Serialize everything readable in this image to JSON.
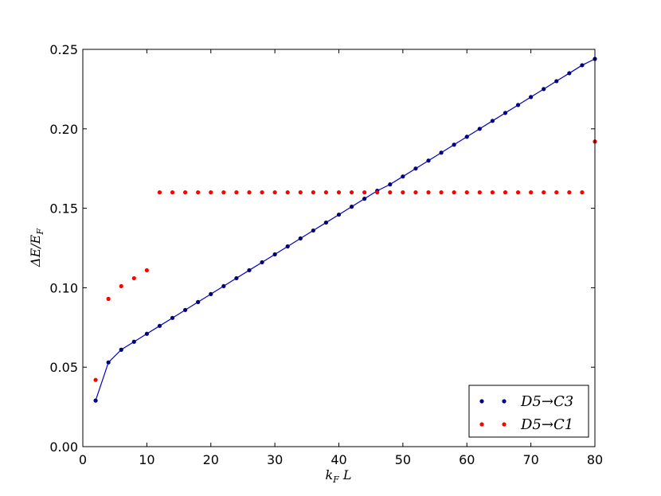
{
  "chart_data": {
    "type": "scatter",
    "xlabel": "k_F L",
    "ylabel": "ΔE/E_F",
    "xlim": [
      0,
      80
    ],
    "ylim": [
      0,
      0.25
    ],
    "xticks": [
      "0",
      "10",
      "20",
      "30",
      "40",
      "50",
      "60",
      "70",
      "80"
    ],
    "yticks": [
      "0.00",
      "0.05",
      "0.10",
      "0.15",
      "0.20",
      "0.25"
    ],
    "legend_position": "lower-right",
    "grid": false,
    "series": [
      {
        "name": "D5→C3",
        "color": "#000080",
        "line_color": "#0000cc",
        "line": true,
        "x": [
          2,
          4,
          6,
          8,
          10,
          12,
          14,
          16,
          18,
          20,
          22,
          24,
          26,
          28,
          30,
          32,
          34,
          36,
          38,
          40,
          42,
          44,
          46,
          48,
          50,
          52,
          54,
          56,
          58,
          60,
          62,
          64,
          66,
          68,
          70,
          72,
          74,
          76,
          78,
          80
        ],
        "y": [
          0.029,
          0.053,
          0.061,
          0.066,
          0.071,
          0.076,
          0.081,
          0.086,
          0.091,
          0.096,
          0.101,
          0.106,
          0.111,
          0.116,
          0.121,
          0.126,
          0.131,
          0.136,
          0.141,
          0.146,
          0.151,
          0.156,
          0.161,
          0.165,
          0.17,
          0.175,
          0.18,
          0.185,
          0.19,
          0.195,
          0.2,
          0.205,
          0.21,
          0.215,
          0.22,
          0.225,
          0.23,
          0.235,
          0.24,
          0.244
        ]
      },
      {
        "name": "D5→C1",
        "color": "#ff0000",
        "line": false,
        "x": [
          2,
          4,
          6,
          8,
          10,
          12,
          14,
          16,
          18,
          20,
          22,
          24,
          26,
          28,
          30,
          32,
          34,
          36,
          38,
          40,
          42,
          44,
          46,
          48,
          50,
          52,
          54,
          56,
          58,
          60,
          62,
          64,
          66,
          68,
          70,
          72,
          74,
          76,
          78,
          80
        ],
        "y": [
          0.042,
          0.093,
          0.101,
          0.106,
          0.111,
          0.16,
          0.16,
          0.16,
          0.16,
          0.16,
          0.16,
          0.16,
          0.16,
          0.16,
          0.16,
          0.16,
          0.16,
          0.16,
          0.16,
          0.16,
          0.16,
          0.16,
          0.16,
          0.16,
          0.16,
          0.16,
          0.16,
          0.16,
          0.16,
          0.16,
          0.16,
          0.16,
          0.16,
          0.16,
          0.16,
          0.16,
          0.16,
          0.16,
          0.16,
          0.192
        ]
      }
    ]
  }
}
